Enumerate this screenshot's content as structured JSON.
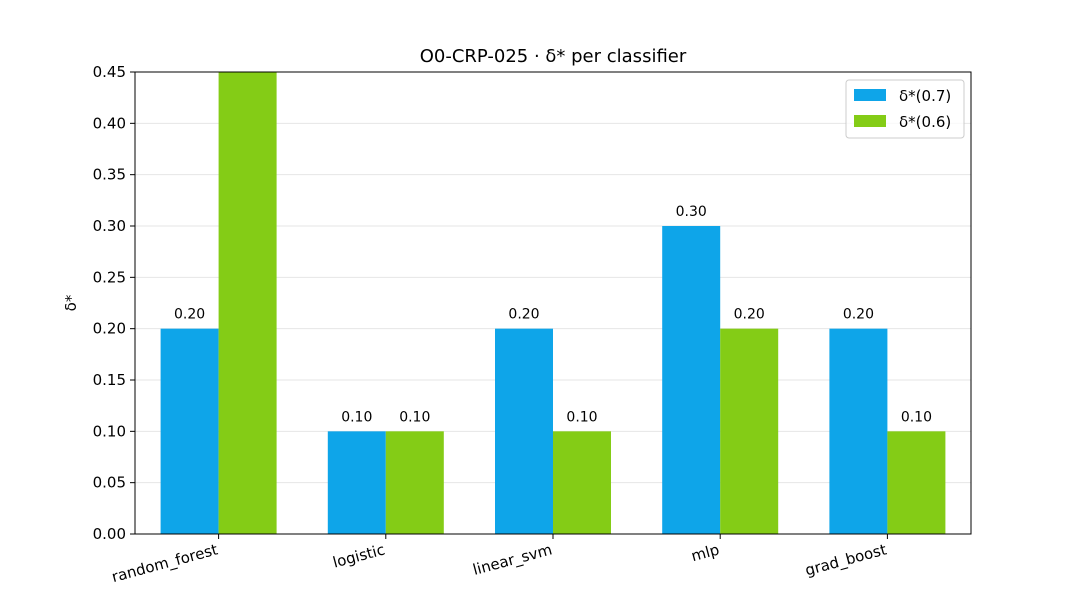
{
  "chart_data": {
    "type": "bar",
    "title": "O0-CRP-025 · δ* per classifier",
    "xlabel": "",
    "ylabel": "δ*",
    "categories": [
      "random_forest",
      "logistic",
      "linear_svm",
      "mlp",
      "grad_boost"
    ],
    "series": [
      {
        "name": "δ*(0.7)",
        "color": "#0ea5e9",
        "values": [
          0.2,
          0.1,
          0.2,
          0.3,
          0.2
        ],
        "labels": [
          "0.20",
          "0.10",
          "0.20",
          "0.30",
          "0.20"
        ]
      },
      {
        "name": "δ*(0.6)",
        "color": "#84cc16",
        "values": [
          0.45,
          0.1,
          0.1,
          0.2,
          0.1
        ],
        "labels": [
          "",
          "0.10",
          "0.10",
          "0.20",
          "0.10"
        ]
      }
    ],
    "ylim": [
      0,
      0.45
    ],
    "yticks": [
      "0.00",
      "0.05",
      "0.10",
      "0.15",
      "0.20",
      "0.25",
      "0.30",
      "0.35",
      "0.40",
      "0.45"
    ],
    "grid": "horizontal",
    "legend_position": "top-right"
  }
}
